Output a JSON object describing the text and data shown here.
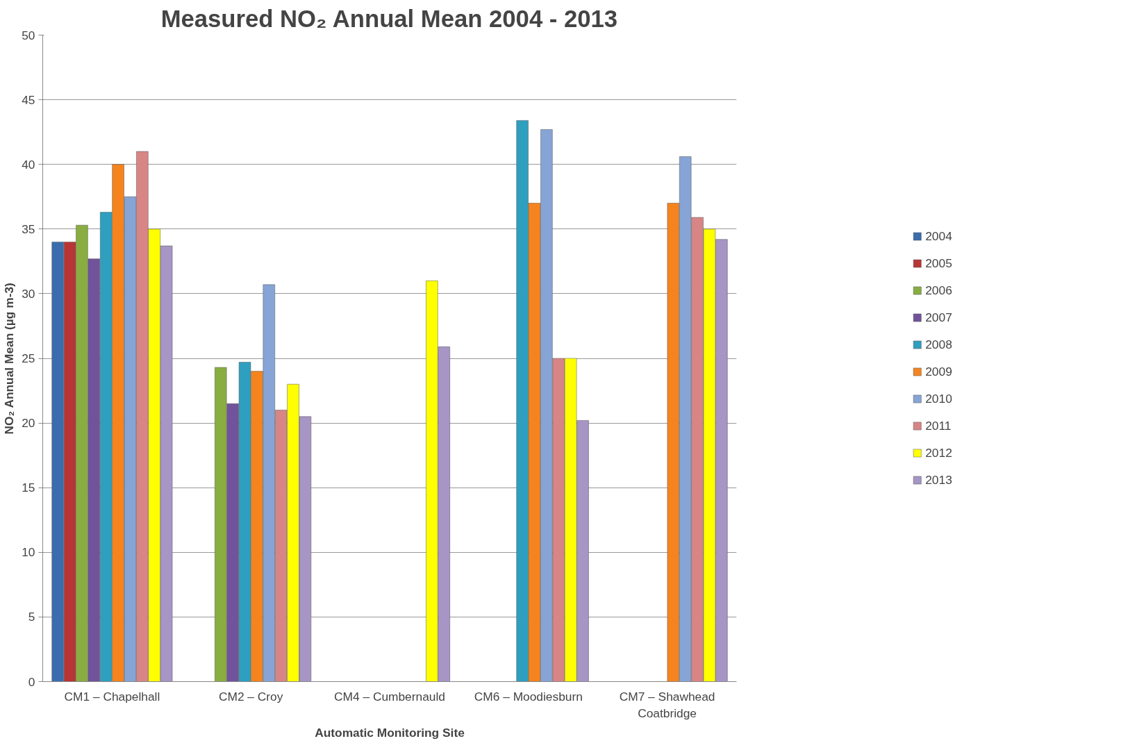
{
  "chart_data": {
    "type": "bar",
    "title": "Measured NO₂ Annual Mean 2004 - 2013",
    "xlabel": "Automatic Monitoring Site",
    "ylabel": "NO₂ Annual Mean (µg m-3)",
    "categories": [
      "CM1 – Chapelhall",
      "CM2 – Croy",
      "CM4 – Cumbernauld",
      "CM6 – Moodiesburn",
      "CM7 – Shawhead\nCoatbridge"
    ],
    "series": [
      {
        "name": "2004",
        "color": "#3a6cae",
        "values": [
          34,
          null,
          null,
          null,
          null
        ]
      },
      {
        "name": "2005",
        "color": "#b93535",
        "values": [
          34,
          null,
          null,
          null,
          null
        ]
      },
      {
        "name": "2006",
        "color": "#8aad41",
        "values": [
          35.3,
          24.3,
          null,
          null,
          null
        ]
      },
      {
        "name": "2007",
        "color": "#71539b",
        "values": [
          32.7,
          21.5,
          null,
          null,
          null
        ]
      },
      {
        "name": "2008",
        "color": "#2f9fbf",
        "values": [
          36.3,
          24.7,
          null,
          43.4,
          null
        ]
      },
      {
        "name": "2009",
        "color": "#f5841f",
        "values": [
          40,
          24,
          null,
          37,
          37
        ]
      },
      {
        "name": "2010",
        "color": "#86a4d5",
        "values": [
          37.5,
          30.7,
          null,
          42.7,
          40.6
        ]
      },
      {
        "name": "2011",
        "color": "#d88585",
        "values": [
          41,
          21,
          null,
          25,
          35.9
        ]
      },
      {
        "name": "2012",
        "color": "#ffff00",
        "values": [
          35,
          23,
          31,
          25,
          35
        ]
      },
      {
        "name": "2013",
        "color": "#a695c5",
        "values": [
          33.7,
          20.5,
          25.9,
          20.2,
          34.2
        ]
      }
    ],
    "ylim": [
      0,
      50
    ],
    "yticks": [
      0,
      5,
      10,
      15,
      20,
      25,
      30,
      35,
      40,
      45,
      50
    ],
    "grid": "y",
    "legend": "right"
  }
}
